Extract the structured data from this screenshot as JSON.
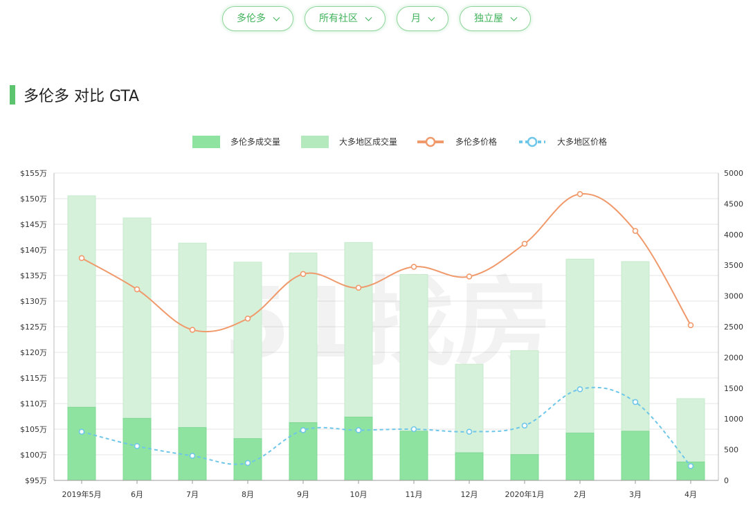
{
  "filters": [
    {
      "label": "多伦多"
    },
    {
      "label": "所有社区"
    },
    {
      "label": "月"
    },
    {
      "label": "独立屋"
    }
  ],
  "section": {
    "title": "多伦多 对比 GTA"
  },
  "colors": {
    "accent": "#5cc36e",
    "toronto_bar": "#8fe3a0",
    "gta_bar": "#d6f1da",
    "toronto_line": "#f0996b",
    "gta_line": "#6ec6e8"
  },
  "watermark": "51找房",
  "chart_data": {
    "type": "bar",
    "categories": [
      "2019年5月",
      "6月",
      "7月",
      "8月",
      "9月",
      "10月",
      "11月",
      "12月",
      "2020年1月",
      "2月",
      "3月",
      "4月"
    ],
    "legend": {
      "position": "top",
      "items": [
        "多伦多成交量",
        "大多地区成交量",
        "多伦多价格",
        "大多地区价格"
      ]
    },
    "series": [
      {
        "name": "多伦多成交量",
        "type": "bar",
        "axis": "right",
        "values": [
          1190,
          1010,
          860,
          680,
          940,
          1030,
          800,
          450,
          420,
          770,
          800,
          300
        ]
      },
      {
        "name": "大多地区成交量",
        "type": "bar",
        "axis": "right",
        "values": [
          4630,
          4270,
          3860,
          3550,
          3700,
          3870,
          3350,
          1890,
          2110,
          3600,
          3560,
          1330
        ]
      },
      {
        "name": "多伦多价格",
        "type": "line",
        "axis": "left",
        "values": [
          1384000,
          1323000,
          1244000,
          1266000,
          1353000,
          1326000,
          1367000,
          1348000,
          1412000,
          1509000,
          1437000,
          1253000
        ]
      },
      {
        "name": "大多地区价格",
        "type": "line",
        "axis": "left",
        "dashed": true,
        "values": [
          1045000,
          1017000,
          998000,
          984000,
          1048000,
          1048000,
          1050000,
          1045000,
          1057000,
          1128000,
          1103000,
          978000
        ]
      }
    ],
    "yleft": {
      "min": 950000,
      "max": 1550000,
      "step": 50000,
      "tick_labels": [
        "$95万",
        "$100万",
        "$105万",
        "$110万",
        "$115万",
        "$120万",
        "$125万",
        "$130万",
        "$135万",
        "$140万",
        "$145万",
        "$150万",
        "$155万"
      ]
    },
    "yright": {
      "min": 0,
      "max": 5000,
      "step": 500,
      "tick_labels": [
        "0",
        "500",
        "1000",
        "1500",
        "2000",
        "2500",
        "3000",
        "3500",
        "4000",
        "4500",
        "5000"
      ]
    },
    "grid": true
  }
}
